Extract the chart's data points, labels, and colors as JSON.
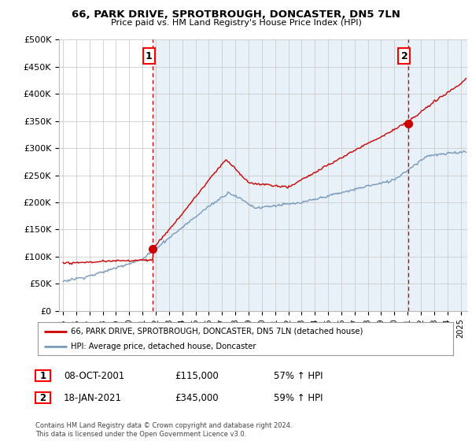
{
  "title": "66, PARK DRIVE, SPROTBROUGH, DONCASTER, DN5 7LN",
  "subtitle": "Price paid vs. HM Land Registry's House Price Index (HPI)",
  "ylim": [
    0,
    500000
  ],
  "yticks": [
    0,
    50000,
    100000,
    150000,
    200000,
    250000,
    300000,
    350000,
    400000,
    450000,
    500000
  ],
  "ytick_labels": [
    "£0",
    "£50K",
    "£100K",
    "£150K",
    "£200K",
    "£250K",
    "£300K",
    "£350K",
    "£400K",
    "£450K",
    "£500K"
  ],
  "xlim_start": 1994.7,
  "xlim_end": 2025.5,
  "sale1_x": 2001.77,
  "sale1_y": 115000,
  "sale2_x": 2021.05,
  "sale2_y": 345000,
  "sale1_label": "1",
  "sale2_label": "2",
  "sale_color": "#cc0000",
  "hpi_color": "#7799bb",
  "vline_color": "#cc0000",
  "plot_bg_color": "#e8f0f8",
  "background_color": "#ffffff",
  "grid_color": "#cccccc",
  "legend_line1": "66, PARK DRIVE, SPROTBROUGH, DONCASTER, DN5 7LN (detached house)",
  "legend_line2": "HPI: Average price, detached house, Doncaster",
  "table_row1": [
    "1",
    "08-OCT-2001",
    "£115,000",
    "57% ↑ HPI"
  ],
  "table_row2": [
    "2",
    "18-JAN-2021",
    "£345,000",
    "59% ↑ HPI"
  ],
  "footnote": "Contains HM Land Registry data © Crown copyright and database right 2024.\nThis data is licensed under the Open Government Licence v3.0.",
  "xticks": [
    1995,
    1996,
    1997,
    1998,
    1999,
    2000,
    2001,
    2002,
    2003,
    2004,
    2005,
    2006,
    2007,
    2008,
    2009,
    2010,
    2011,
    2012,
    2013,
    2014,
    2015,
    2016,
    2017,
    2018,
    2019,
    2020,
    2021,
    2022,
    2023,
    2024,
    2025
  ]
}
